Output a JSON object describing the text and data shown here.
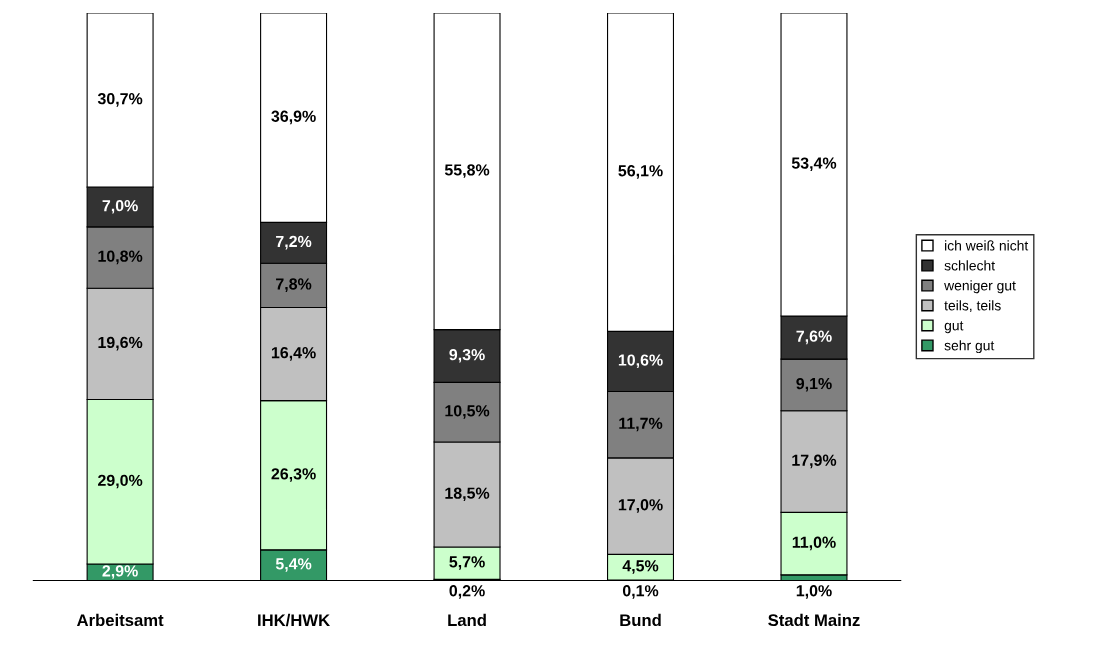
{
  "chart_data": {
    "type": "bar",
    "stacked": true,
    "legend": "right",
    "grid": false,
    "categories": [
      "Arbeitsamt",
      "IHK/HWK",
      "Land",
      "Bund",
      "Stadt Mainz"
    ],
    "series": [
      {
        "name": "sehr gut",
        "color": "#339966",
        "values": [
          2.9,
          5.4,
          0.2,
          0.1,
          1.0
        ],
        "value_labels": [
          "2,9%",
          "5,4%",
          "0,2%",
          "0,1%",
          "1,0%"
        ]
      },
      {
        "name": "gut",
        "color": "#ccffcc",
        "values": [
          29.0,
          26.3,
          5.7,
          4.5,
          11.0
        ],
        "value_labels": [
          "29,0%",
          "26,3%",
          "5,7%",
          "4,5%",
          "11,0%"
        ]
      },
      {
        "name": "teils, teils",
        "color": "#c0c0c0",
        "values": [
          19.6,
          16.4,
          18.5,
          17.0,
          17.9
        ],
        "value_labels": [
          "19,6%",
          "16,4%",
          "18,5%",
          "17,0%",
          "17,9%"
        ]
      },
      {
        "name": "weniger gut",
        "color": "#808080",
        "values": [
          10.8,
          7.8,
          10.5,
          11.7,
          9.1
        ],
        "value_labels": [
          "10,8%",
          "7,8%",
          "10,5%",
          "11,7%",
          "9,1%"
        ]
      },
      {
        "name": "schlecht",
        "color": "#333333",
        "values": [
          7.0,
          7.2,
          9.3,
          10.6,
          7.6
        ],
        "value_labels": [
          "7,0%",
          "7,2%",
          "9,3%",
          "10,6%",
          "7,6%"
        ]
      },
      {
        "name": "ich weiß nicht",
        "color": "#ffffff",
        "values": [
          30.7,
          36.9,
          55.8,
          56.1,
          53.4
        ],
        "value_labels": [
          "30,7%",
          "36,9%",
          "55,8%",
          "56,1%",
          "53,4%"
        ]
      }
    ]
  }
}
